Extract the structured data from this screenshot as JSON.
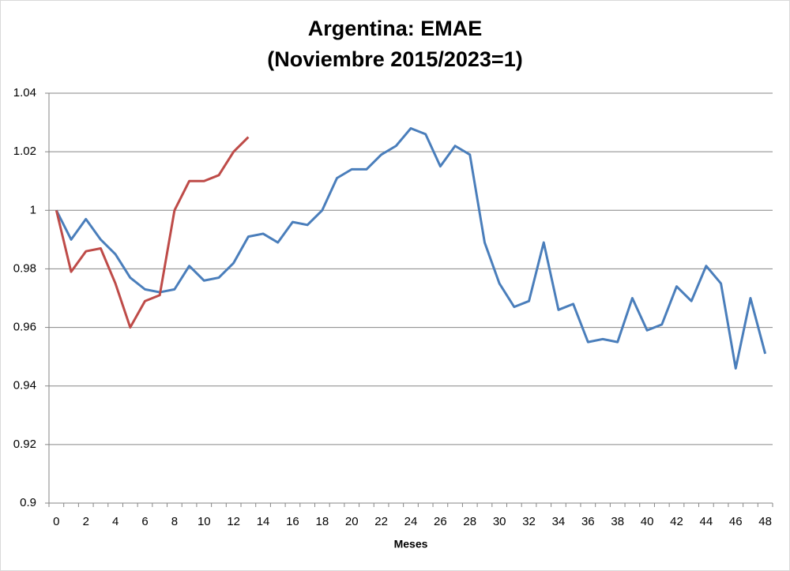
{
  "chart_data": {
    "type": "line",
    "title": "Argentina: EMAE",
    "subtitle": "(Noviembre 2015/2023=1)",
    "x_label": "Meses",
    "categories": [
      "0",
      null,
      "2",
      null,
      "4",
      null,
      "6",
      null,
      "8",
      null,
      "10",
      null,
      "12",
      null,
      "14",
      null,
      "16",
      null,
      "18",
      null,
      "20",
      null,
      "22",
      null,
      "24",
      null,
      "26",
      null,
      "28",
      null,
      "30",
      null,
      "32",
      null,
      "34",
      null,
      "36",
      null,
      "38",
      null,
      "40",
      null,
      "42",
      null,
      "44",
      null,
      "46",
      null,
      "48"
    ],
    "series": [
      {
        "color": "#4a7ebb",
        "values": [
          1.0,
          0.99,
          0.997,
          0.99,
          0.985,
          0.977,
          0.973,
          0.972,
          0.973,
          0.981,
          0.976,
          0.977,
          0.982,
          0.991,
          0.992,
          0.989,
          0.996,
          0.995,
          1.0,
          1.011,
          1.014,
          1.014,
          1.019,
          1.022,
          1.028,
          1.026,
          1.015,
          1.022,
          1.019,
          0.989,
          0.975,
          0.967,
          0.969,
          0.989,
          0.966,
          0.968,
          0.955,
          0.956,
          0.955,
          0.97,
          0.959,
          0.961,
          0.974,
          0.969,
          0.981,
          0.975,
          0.946,
          0.97,
          0.951
        ]
      },
      {
        "color": "#be4b48",
        "values": [
          1.0,
          0.979,
          0.986,
          0.987,
          0.975,
          0.96,
          0.969,
          0.971,
          1.0,
          1.01,
          1.01,
          1.012,
          1.02,
          1.025,
          null,
          null,
          null,
          null,
          null,
          null,
          null,
          null,
          null,
          null,
          null,
          null,
          null,
          null,
          null,
          null,
          null,
          null,
          null,
          null,
          null,
          null,
          null,
          null,
          null,
          null,
          null,
          null,
          null,
          null,
          null,
          null,
          null,
          null,
          null
        ]
      }
    ],
    "ylim": [
      0.9,
      1.04
    ],
    "yticks": [
      {
        "value": 0.9,
        "label": "0.9"
      },
      0.92,
      0.94,
      0.96,
      0.98,
      {
        "value": 1,
        "label": "1"
      },
      1.02,
      1.04
    ],
    "grid": true
  }
}
